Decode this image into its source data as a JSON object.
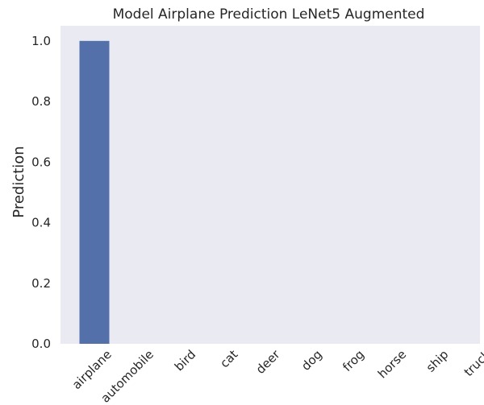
{
  "chart_data": {
    "type": "bar",
    "title": "Model Airplane Prediction LeNet5 Augmented",
    "xlabel": "",
    "ylabel": "Prediction",
    "categories": [
      "airplane",
      "automobile",
      "bird",
      "cat",
      "deer",
      "dog",
      "frog",
      "horse",
      "ship",
      "truck"
    ],
    "values": [
      1.0,
      0.0,
      0.0,
      0.0,
      0.0,
      0.0,
      0.0,
      0.0,
      0.0,
      0.0
    ],
    "ylim": [
      0,
      1.05
    ],
    "yticks": [
      "0.0",
      "0.2",
      "0.4",
      "0.6",
      "0.8",
      "1.0"
    ],
    "grid": false,
    "colors": {
      "bar": "#5470ab",
      "plot_background": "#eaeaf2",
      "text": "#262626"
    }
  }
}
